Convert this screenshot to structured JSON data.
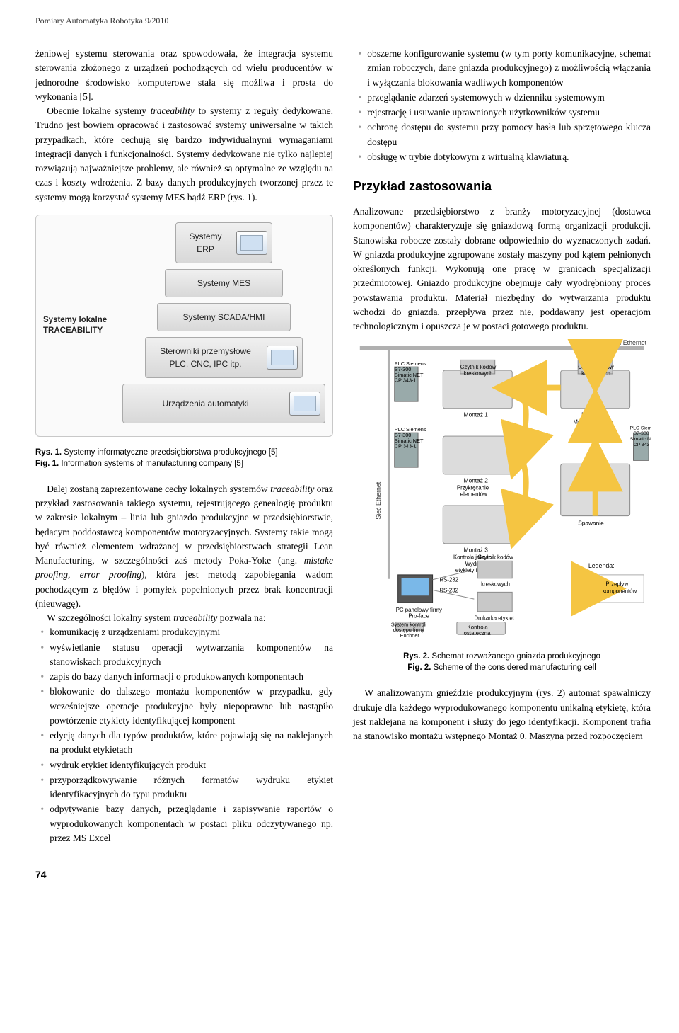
{
  "header": "Pomiary Automatyka Robotyka  9/2010",
  "col_left": {
    "para1": "żeniowej systemu sterowania oraz spowodowała, że integracja systemu sterowania złożonego z urządzeń pochodzących od wielu producentów w jednorodne środowisko komputerowe stała się możliwa i prosta do wykonania [5].",
    "para2_a": "Obecnie lokalne systemy ",
    "para2_i": "traceability",
    "para2_b": " to systemy z reguły dedykowane. Trudno jest bowiem opracować i zastosować systemy uniwersalne w takich przypadkach, które cechują się bardzo indywidualnymi wymaganiami integracji danych i funkcjonalności. Systemy dedykowane nie tylko najlepiej rozwiązują najważniejsze problemy, ale również są optymalne ze względu na czas i koszty wdrożenia. Z bazy danych produkcyjnych tworzonej przez te systemy mogą korzystać systemy MES bądź ERP (rys. 1).",
    "fig1": {
      "tiers": [
        "Systemy ERP",
        "Systemy MES",
        "Systemy SCADA/HMI",
        "Sterowniki przemysłowe\nPLC, CNC, IPC itp.",
        "Urządzenia automatyki"
      ],
      "side_label": "Systemy lokalne\nTRACEABILITY"
    },
    "caption1_rys": "Rys. 1. ",
    "caption1_rys_txt": "Systemy informatyczne przedsiębiorstwa produkcyjnego [5]",
    "caption1_fig": "Fig. 1. ",
    "caption1_fig_txt": "Information systems of manufacturing company [5]",
    "para3_a": "Dalej zostaną zaprezentowane cechy lokalnych systemów ",
    "para3_i": "traceability",
    "para3_b": " oraz przykład zastosowania takiego systemu, rejestrującego genealogię produktu w zakresie lokalnym – linia lub gniazdo produkcyjne w przedsiębiorstwie, będącym poddostawcą komponentów motoryzacyjnych. Systemy takie mogą być również elementem wdrażanej w przedsiębiorstwach strategii Lean Manufacturing, w szczególności zaś metody Poka-Yoke (ang. ",
    "para3_i2": "mistake proofing, error proofing",
    "para3_c": "), która jest metodą zapobiegania wadom pochodzącym z błędów i pomyłek popełnionych przez brak koncentracji (nieuwagę).",
    "para4_a": "W szczególności lokalny system ",
    "para4_i": "traceability",
    "para4_b": " pozwala na:",
    "bullets_left": [
      "komunikację z urządzeniami produkcyjnymi",
      "wyświetlanie statusu operacji wytwarzania komponentów na stanowiskach produkcyjnych",
      "zapis do bazy danych informacji o produkowanych komponentach",
      "blokowanie do dalszego montażu komponentów w przypadku, gdy wcześniejsze operacje produkcyjne były niepoprawne lub nastąpiło powtórzenie etykiety identyfikującej komponent",
      "edycję danych dla typów produktów, które pojawiają się na naklejanych na produkt etykietach",
      "wydruk etykiet identyfikujących produkt",
      "przyporządkowywanie różnych formatów wydruku etykiet identyfikacyjnych do typu produktu",
      "odpytywanie bazy danych, przeglądanie i zapisywanie raportów o wyprodukowanych komponentach w postaci pliku odczytywanego np. przez MS Excel"
    ]
  },
  "col_right": {
    "bullets_top": [
      "obszerne konfigurowanie systemu (w tym porty komunikacyjne, schemat zmian roboczych, dane gniazda produkcyjnego) z możliwością włączania i wyłączania blokowania wadliwych komponentów",
      "przeglądanie zdarzeń systemowych w dzienniku systemowym",
      "rejestrację i usuwanie uprawnionych użytkowników systemu",
      "ochronę dostępu do systemu przy pomocy hasła lub sprzętowego klucza dostępu",
      "obsługę w trybie dotykowym z wirtualną klawiaturą."
    ],
    "section_heading": "Przykład zastosowania",
    "para1": "Analizowane przedsiębiorstwo z branży motoryzacyjnej (dostawca komponentów) charakteryzuje się gniazdową formą organizacji produkcji. Stanowiska robocze zostały dobrane odpowiednio do wyznaczonych zadań. W gniazda produkcyjne zgrupowane zostały maszyny pod kątem pełnionych określonych funkcji. Wykonują one pracę w granicach specjalizacji przedmiotowej. Gniazdo produkcyjne obejmuje cały wyodrębniony proces powstawania produktu. Materiał niezbędny do wytwarzania produktu wchodzi do gniazda, przepływa przez nie, poddawany jest operacjom technologicznym i opuszcza je w postaci gotowego produktu.",
    "fig2": {
      "top_label": "Sieć Ethernet",
      "plc_label": "PLC Siemens\nS7-300\nSimatic NET\nCP 343-1",
      "reader_label": "Czytnik kodów\nkreskowych",
      "stations": [
        "Montaż 1",
        "Montaż 2\nPrzykręcanie\nelementów",
        "Montaż 3\nKontrola jakości\nWydruk\netykiety finalnej"
      ],
      "right_stations": [
        "Montaż 0\nMontaż wstępny",
        "Spawanie"
      ],
      "side_label": "Sieć Ethernet",
      "rs232": "RS-232",
      "pc_label": "PC panelowy firmy\nPro-face",
      "printer_label": "Drukarka etykiet",
      "access_label": "System kontroli\ndostępu firmy\nEuchner",
      "final_label": "Kontrola\nostateczna",
      "legend_title": "Legenda:",
      "legend_item": "Przepływ\nkomponentów"
    },
    "caption2_rys": "Rys. 2. ",
    "caption2_rys_txt": "Schemat rozważanego gniazda produkcyjnego",
    "caption2_fig": "Fig. 2. ",
    "caption2_fig_txt": "Scheme of the considered manufacturing cell",
    "para_last": "W analizowanym gnieździe produkcyjnym (rys. 2) automat spawalniczy drukuje dla każdego wyprodukowanego komponentu unikalną etykietę, która jest naklejana na komponent i służy do jego identyfikacji. Komponent trafia na stanowisko montażu wstępnego Montaż 0. Maszyna przed rozpoczęciem"
  },
  "page_number": "74"
}
